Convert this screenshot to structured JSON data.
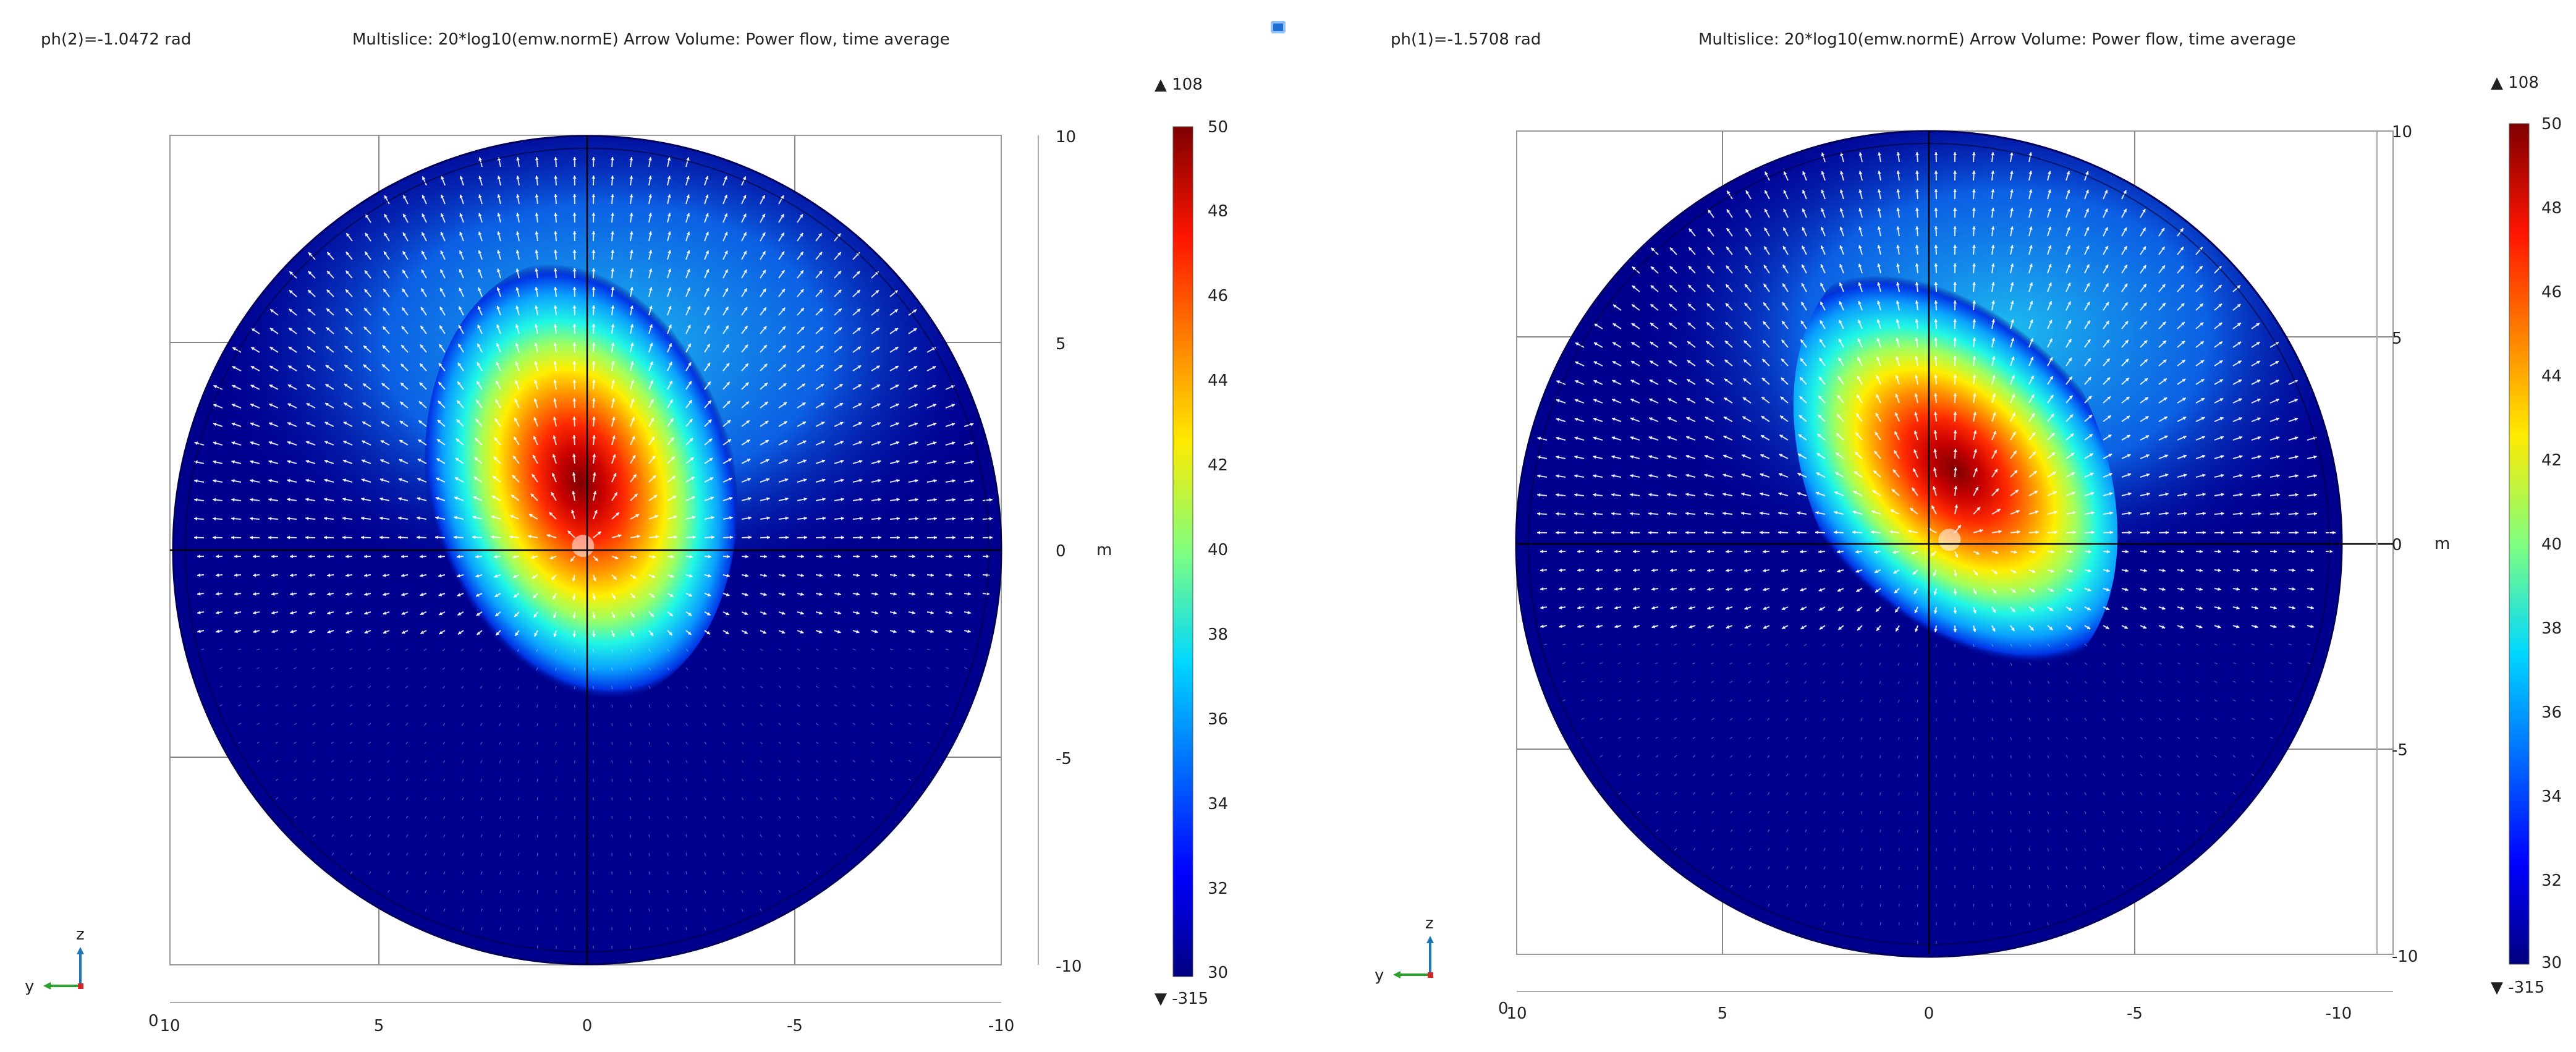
{
  "icons": {
    "center_toolbar": "image-icon"
  },
  "colors": {
    "colormap": [
      "#00007f",
      "#0000ff",
      "#007fff",
      "#00ffff",
      "#7fff7f",
      "#ffff00",
      "#ff7f00",
      "#ff0000",
      "#7f0000"
    ],
    "arrow": "#ffffff",
    "axis_line": "#000000",
    "grid": "#888888",
    "triad_x": "#d62728",
    "triad_y": "#2ca02c",
    "triad_z": "#1f77b4"
  },
  "chart_data": [
    {
      "type": "heatmap",
      "title_left": "ph(2)=-1.0472 rad",
      "title_center": "Multislice: 20*log10(emw.normE)  Arrow Volume: Power flow, time average",
      "x_axis": {
        "ticks": [
          "10",
          "5",
          "0",
          "-5",
          "-10"
        ],
        "range": [
          10,
          -10
        ],
        "corner_label": "0"
      },
      "y_axis": {
        "ticks": [
          "10",
          "5",
          "0",
          "-5",
          "-10"
        ],
        "range": [
          -10,
          10
        ],
        "unit": "m"
      },
      "colorbar": {
        "max_marker": "▲ 108",
        "min_marker": "▼ -315",
        "ticks": [
          "50",
          "48",
          "46",
          "44",
          "42",
          "40",
          "38",
          "36",
          "34",
          "32",
          "30"
        ],
        "range": [
          30,
          50
        ]
      },
      "hotspot": {
        "x": 0.1,
        "y": 2.0,
        "peak_db": 50,
        "tilt_deg": -8
      },
      "source_y": 0.1,
      "grid": true,
      "triad": {
        "z": "z",
        "y": "y"
      }
    },
    {
      "type": "heatmap",
      "title_left": "ph(1)=-1.5708 rad",
      "title_center": "Multislice: 20*log10(emw.normE)  Arrow Volume: Power flow, time average",
      "x_axis": {
        "ticks": [
          "10",
          "5",
          "0",
          "-5",
          "-10"
        ],
        "range": [
          10,
          -10
        ],
        "corner_label": "0"
      },
      "y_axis": {
        "ticks": [
          "10",
          "5",
          "0",
          "-5",
          "-10"
        ],
        "range": [
          -10,
          10
        ],
        "unit": "m"
      },
      "colorbar": {
        "max_marker": "▲ 108",
        "min_marker": "▼ -315",
        "ticks": [
          "50",
          "48",
          "46",
          "44",
          "42",
          "40",
          "38",
          "36",
          "34",
          "32",
          "30"
        ],
        "range": [
          30,
          50
        ]
      },
      "hotspot": {
        "x": -0.5,
        "y": 2.2,
        "peak_db": 50,
        "tilt_deg": -22
      },
      "source_y": 0.1,
      "grid": true,
      "triad": {
        "z": "z",
        "y": "y"
      }
    }
  ]
}
